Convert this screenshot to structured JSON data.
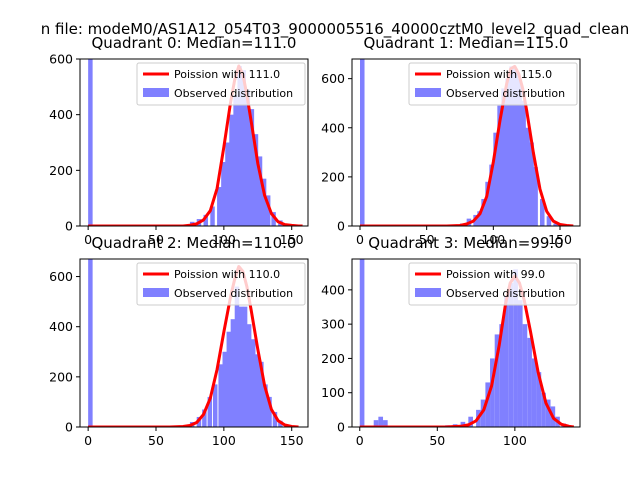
{
  "figure_title": "n file: modeM0/AS1A12_054T03_9000005516_40000cztM0_level2_quad_clean",
  "colors": {
    "hist": "#8080ff",
    "poisson": "#ff0000",
    "axis": "#000000"
  },
  "chart_data": [
    {
      "type": "bar",
      "title": "Quadrant 0: Median=111.0",
      "xlim": [
        -6,
        162
      ],
      "ylim": [
        0,
        600
      ],
      "xticks": [
        0,
        50,
        100,
        150
      ],
      "yticks": [
        0,
        200,
        400,
        600
      ],
      "legend_position": "top-right",
      "bin_width": 3.3,
      "series": [
        {
          "name": "Poission with 111.0",
          "kind": "line",
          "mean": 111,
          "x": [
            0,
            60,
            70,
            75,
            80,
            85,
            90,
            95,
            100,
            105,
            108,
            111,
            114,
            117,
            120,
            125,
            130,
            135,
            140,
            145,
            150,
            155,
            158
          ],
          "values": [
            0,
            0,
            0,
            3,
            8,
            22,
            55,
            135,
            285,
            445,
            525,
            575,
            545,
            470,
            380,
            225,
            110,
            45,
            15,
            5,
            2,
            0,
            0
          ]
        },
        {
          "name": "Observed distribution",
          "kind": "hist",
          "x": [
            0,
            70,
            75,
            80,
            85,
            90,
            95,
            98,
            101,
            104,
            107,
            110,
            113,
            116,
            119,
            122,
            125,
            128,
            131,
            135,
            140,
            145,
            150
          ],
          "values": [
            600,
            5,
            15,
            25,
            40,
            70,
            140,
            230,
            300,
            400,
            470,
            575,
            560,
            490,
            420,
            330,
            250,
            170,
            110,
            50,
            20,
            8,
            3
          ]
        }
      ]
    },
    {
      "type": "bar",
      "title": "Quadrant 1: Median=115.0",
      "xlim": [
        -6,
        165
      ],
      "ylim": [
        0,
        680
      ],
      "xticks": [
        0,
        50,
        100,
        150
      ],
      "yticks": [
        0,
        200,
        400,
        600
      ],
      "legend_position": "top-right",
      "bin_width": 3.4,
      "series": [
        {
          "name": "Poission with 115.0",
          "kind": "line",
          "mean": 115,
          "x": [
            0,
            65,
            75,
            80,
            85,
            90,
            95,
            100,
            105,
            110,
            113,
            116,
            119,
            122,
            125,
            130,
            135,
            140,
            145,
            150,
            155,
            160
          ],
          "values": [
            0,
            0,
            2,
            8,
            20,
            50,
            120,
            260,
            430,
            580,
            640,
            650,
            620,
            560,
            470,
            300,
            150,
            60,
            20,
            6,
            2,
            0
          ]
        },
        {
          "name": "Observed distribution",
          "kind": "hist",
          "x": [
            0,
            75,
            80,
            85,
            88,
            91,
            94,
            97,
            100,
            103,
            106,
            109,
            112,
            115,
            118,
            121,
            124,
            127,
            130,
            135,
            140,
            145
          ],
          "values": [
            680,
            10,
            30,
            45,
            60,
            110,
            180,
            250,
            380,
            490,
            560,
            600,
            650,
            640,
            600,
            510,
            400,
            340,
            240,
            110,
            40,
            10
          ]
        }
      ]
    },
    {
      "type": "bar",
      "title": "Quadrant 2: Median=110.0",
      "xlim": [
        -6,
        162
      ],
      "ylim": [
        0,
        670
      ],
      "xticks": [
        0,
        50,
        100,
        150
      ],
      "yticks": [
        0,
        200,
        400,
        600
      ],
      "legend_position": "top-right",
      "bin_width": 3.3,
      "series": [
        {
          "name": "Poission with 110.0",
          "kind": "line",
          "mean": 110,
          "x": [
            0,
            60,
            70,
            75,
            80,
            85,
            90,
            95,
            100,
            105,
            108,
            111,
            114,
            117,
            120,
            125,
            130,
            135,
            140,
            145,
            150,
            155
          ],
          "values": [
            0,
            0,
            2,
            6,
            18,
            50,
            115,
            230,
            380,
            520,
            590,
            640,
            620,
            560,
            470,
            310,
            165,
            70,
            25,
            8,
            2,
            0
          ]
        },
        {
          "name": "Observed distribution",
          "kind": "hist",
          "x": [
            0,
            75,
            80,
            84,
            88,
            92,
            96,
            99,
            102,
            105,
            108,
            111,
            114,
            117,
            120,
            123,
            126,
            129,
            132,
            136,
            140,
            145
          ],
          "values": [
            670,
            20,
            40,
            70,
            120,
            170,
            250,
            300,
            380,
            430,
            560,
            480,
            480,
            410,
            350,
            290,
            260,
            170,
            120,
            60,
            25,
            8
          ]
        }
      ]
    },
    {
      "type": "bar",
      "title": "Quadrant 3: Median=99.0",
      "xlim": [
        -5,
        142
      ],
      "ylim": [
        0,
        490
      ],
      "xticks": [
        0,
        50,
        100
      ],
      "yticks": [
        0,
        100,
        200,
        300,
        400
      ],
      "legend_position": "top-right",
      "bin_width": 3.0,
      "series": [
        {
          "name": "Poission with 99.0",
          "kind": "line",
          "mean": 99,
          "x": [
            0,
            55,
            65,
            70,
            75,
            80,
            85,
            90,
            94,
            97,
            100,
            103,
            106,
            110,
            115,
            120,
            125,
            130,
            135,
            138
          ],
          "values": [
            0,
            0,
            2,
            6,
            18,
            50,
            120,
            240,
            360,
            420,
            440,
            420,
            370,
            280,
            160,
            70,
            25,
            8,
            2,
            0
          ]
        },
        {
          "name": "Observed distribution",
          "kind": "hist",
          "x": [
            0,
            9,
            12,
            15,
            55,
            60,
            65,
            70,
            75,
            78,
            81,
            84,
            87,
            90,
            93,
            96,
            99,
            102,
            105,
            108,
            111,
            114,
            117,
            120,
            123,
            126,
            130
          ],
          "values": [
            490,
            20,
            30,
            20,
            5,
            8,
            15,
            30,
            50,
            80,
            130,
            200,
            270,
            300,
            380,
            420,
            460,
            370,
            300,
            260,
            200,
            160,
            100,
            80,
            60,
            30,
            10
          ]
        }
      ]
    }
  ]
}
